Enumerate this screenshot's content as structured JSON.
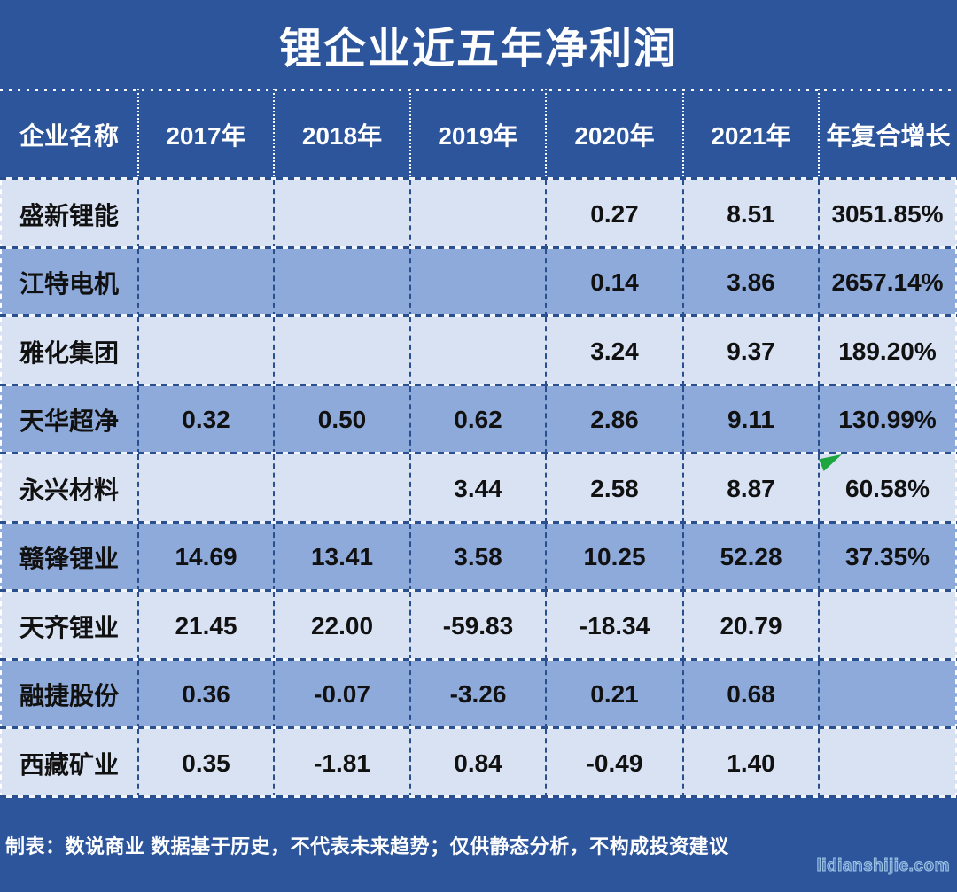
{
  "title": "锂企业近五年净利润",
  "table": {
    "columns": [
      "企业名称",
      "2017年",
      "2018年",
      "2019年",
      "2020年",
      "2021年",
      "年复合增长"
    ],
    "rows": [
      {
        "name": "盛新锂能",
        "values": [
          "",
          "",
          "",
          "0.27",
          "8.51",
          "3051.85%"
        ]
      },
      {
        "name": "江特电机",
        "values": [
          "",
          "",
          "",
          "0.14",
          "3.86",
          "2657.14%"
        ]
      },
      {
        "name": "雅化集团",
        "values": [
          "",
          "",
          "",
          "3.24",
          "9.37",
          "189.20%"
        ]
      },
      {
        "name": "天华超净",
        "values": [
          "0.32",
          "0.50",
          "0.62",
          "2.86",
          "9.11",
          "130.99%"
        ]
      },
      {
        "name": "永兴材料",
        "values": [
          "",
          "",
          "3.44",
          "2.58",
          "8.87",
          "60.58%"
        ],
        "marker": "green-corner-flag"
      },
      {
        "name": "赣锋锂业",
        "values": [
          "14.69",
          "13.41",
          "3.58",
          "10.25",
          "52.28",
          "37.35%"
        ]
      },
      {
        "name": "天齐锂业",
        "values": [
          "21.45",
          "22.00",
          "-59.83",
          "-18.34",
          "20.79",
          ""
        ]
      },
      {
        "name": "融捷股份",
        "values": [
          "0.36",
          "-0.07",
          "-3.26",
          "0.21",
          "0.68",
          ""
        ]
      },
      {
        "name": "西藏矿业",
        "values": [
          "0.35",
          "-1.81",
          "0.84",
          "-0.49",
          "1.40",
          ""
        ]
      }
    ]
  },
  "footer": {
    "note": "制表：数说商业 数据基于历史，不代表未来趋势；仅供静态分析，不构成投资建议",
    "watermark": "lidianshijie.com"
  },
  "colors": {
    "background_blue": "#2d559c",
    "light_row": "#d9e2f3",
    "dark_row": "#8eaadb",
    "border_navy": "#2a4f8f",
    "text_dark": "#111111",
    "text_white": "#ffffff",
    "flag_green": "#1da53f",
    "watermark_blue": "#9ec5e8"
  },
  "chart_data": {
    "type": "table",
    "title": "锂企业近五年净利润",
    "columns": [
      "企业名称",
      "2017年",
      "2018年",
      "2019年",
      "2020年",
      "2021年",
      "年复合增长"
    ],
    "rows": [
      [
        "盛新锂能",
        null,
        null,
        null,
        0.27,
        8.51,
        "3051.85%"
      ],
      [
        "江特电机",
        null,
        null,
        null,
        0.14,
        3.86,
        "2657.14%"
      ],
      [
        "雅化集团",
        null,
        null,
        null,
        3.24,
        9.37,
        "189.20%"
      ],
      [
        "天华超净",
        0.32,
        0.5,
        0.62,
        2.86,
        9.11,
        "130.99%"
      ],
      [
        "永兴材料",
        null,
        null,
        3.44,
        2.58,
        8.87,
        "60.58%"
      ],
      [
        "赣锋锂业",
        14.69,
        13.41,
        3.58,
        10.25,
        52.28,
        "37.35%"
      ],
      [
        "天齐锂业",
        21.45,
        22.0,
        -59.83,
        -18.34,
        20.79,
        null
      ],
      [
        "融捷股份",
        0.36,
        -0.07,
        -3.26,
        0.21,
        0.68,
        null
      ],
      [
        "西藏矿业",
        0.35,
        -1.81,
        0.84,
        -0.49,
        1.4,
        null
      ]
    ],
    "banding": [
      "light",
      "dark",
      "light",
      "dark",
      "light",
      "dark",
      "light",
      "dark",
      "light"
    ],
    "source_note": "制表：数说商业 数据基于历史，不代表未来趋势；仅供静态分析，不构成投资建议"
  }
}
